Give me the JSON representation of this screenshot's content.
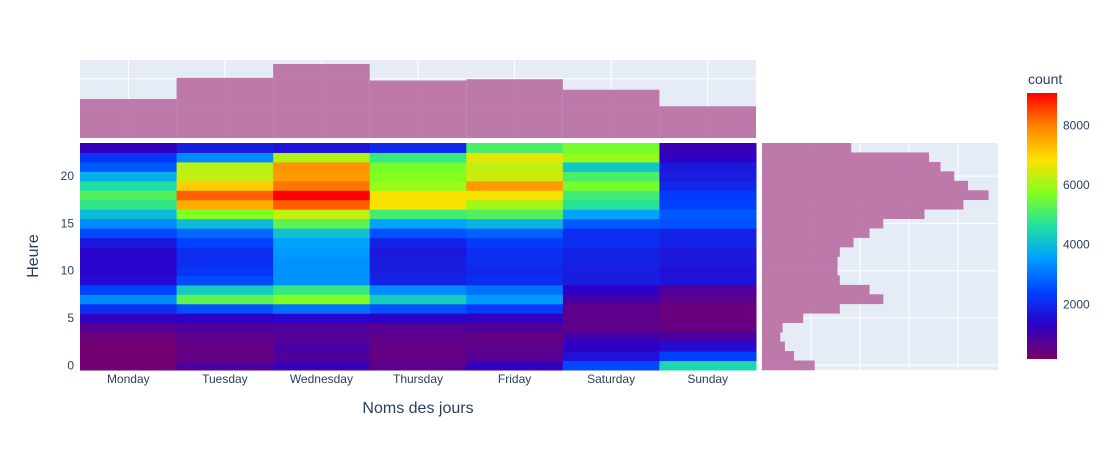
{
  "chart_data": {
    "type": "heatmap",
    "title": "",
    "xlabel": "Noms des jours",
    "ylabel": "Heure",
    "colorbar_title": "count",
    "colorbar_ticks": [
      2000,
      4000,
      6000,
      8000
    ],
    "colorscale": "rainbow",
    "zrange": [
      160,
      9100
    ],
    "categories": [
      "Monday",
      "Tuesday",
      "Wednesday",
      "Thursday",
      "Friday",
      "Saturday",
      "Sunday"
    ],
    "hours": [
      0,
      1,
      2,
      3,
      4,
      5,
      6,
      7,
      8,
      9,
      10,
      11,
      12,
      13,
      14,
      15,
      16,
      17,
      18,
      19,
      20,
      21,
      22,
      23
    ],
    "y_ticks": [
      0,
      5,
      10,
      15,
      20
    ],
    "ylim": [
      -0.5,
      23.5
    ],
    "grid": true,
    "z": [
      [
        300,
        800,
        1100,
        600,
        1200,
        2500,
        4500
      ],
      [
        300,
        500,
        800,
        500,
        700,
        1600,
        2400
      ],
      [
        250,
        500,
        900,
        500,
        600,
        1300,
        1500
      ],
      [
        400,
        600,
        700,
        600,
        500,
        1000,
        900
      ],
      [
        700,
        800,
        800,
        700,
        800,
        600,
        500
      ],
      [
        1200,
        1300,
        1400,
        1300,
        1200,
        600,
        400
      ],
      [
        2100,
        2600,
        3000,
        2600,
        2300,
        600,
        400
      ],
      [
        3300,
        5300,
        5700,
        4300,
        3500,
        900,
        600
      ],
      [
        2400,
        4300,
        4900,
        3300,
        3000,
        1300,
        800
      ],
      [
        1500,
        2500,
        3400,
        1900,
        2100,
        1800,
        1600
      ],
      [
        1400,
        2200,
        3400,
        1800,
        2000,
        1800,
        1600
      ],
      [
        1400,
        2100,
        3400,
        1800,
        2100,
        1900,
        1700
      ],
      [
        1400,
        2100,
        3500,
        1700,
        2100,
        1900,
        1700
      ],
      [
        1700,
        2400,
        3600,
        1900,
        2300,
        2100,
        1900
      ],
      [
        2500,
        2900,
        4100,
        2600,
        2800,
        2100,
        1900
      ],
      [
        3300,
        4000,
        5300,
        3600,
        3900,
        2700,
        2600
      ],
      [
        4000,
        5700,
        6300,
        5000,
        5200,
        3600,
        2700
      ],
      [
        4800,
        7500,
        8300,
        6800,
        6000,
        4700,
        2400
      ],
      [
        5200,
        8300,
        9100,
        6800,
        6800,
        5000,
        2300
      ],
      [
        4600,
        7100,
        8100,
        5900,
        7700,
        5600,
        2000
      ],
      [
        3800,
        6300,
        7700,
        5700,
        6400,
        5100,
        1800
      ],
      [
        2700,
        6200,
        7800,
        5600,
        6300,
        4200,
        1700
      ],
      [
        2200,
        3300,
        6100,
        4900,
        6600,
        5900,
        1300
      ],
      [
        1200,
        1800,
        1600,
        2000,
        5100,
        5600,
        1100
      ]
    ],
    "marginal_x": {
      "orientation": "vertical",
      "color": "#bb73a4",
      "values": [
        59000,
        91000,
        112000,
        87000,
        89000,
        73000,
        48000
      ]
    },
    "marginal_y": {
      "orientation": "horizontal",
      "color": "#bb73a4",
      "values": [
        23000,
        14000,
        10000,
        8000,
        9000,
        18000,
        34000,
        53000,
        47000,
        34000,
        33000,
        33000,
        34000,
        40000,
        47000,
        53000,
        71000,
        88000,
        99000,
        90000,
        84000,
        78000,
        73000,
        39000
      ]
    },
    "plot_bgcolor": "#e5ecf6",
    "paper_bgcolor": "#ffffff",
    "text_color": "#2a3f5f"
  }
}
